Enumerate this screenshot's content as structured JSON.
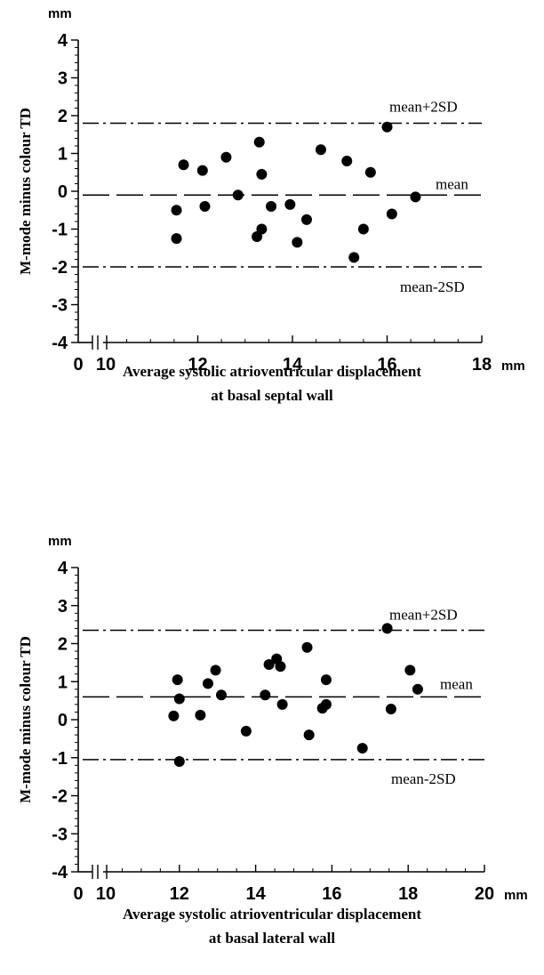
{
  "chart_data": [
    {
      "type": "scatter",
      "title": "",
      "ylabel": "M-mode minus colour TD",
      "y_unit": "mm",
      "x_unit": "mm",
      "xlabel_lines": [
        "Average systolic atrioventricular displacement",
        "at basal septal wall"
      ],
      "ylim": [
        -4,
        4
      ],
      "yticks": [
        4,
        3,
        2,
        1,
        0,
        -1,
        -2,
        -3,
        -4
      ],
      "ytick_labels": [
        "4",
        "3",
        "2",
        "1",
        "0",
        "-1",
        "-2",
        "-3",
        "-4"
      ],
      "xlim": [
        10,
        18
      ],
      "xticks": [
        12,
        14,
        16,
        18
      ],
      "xtick_labels": [
        "12",
        "14",
        "16",
        "18"
      ],
      "x_break_labels": [
        "0",
        "10"
      ],
      "grid": false,
      "reference_lines": [
        {
          "label": "mean+2SD",
          "value": 1.8,
          "style": "dash-dot"
        },
        {
          "label": "mean",
          "value": -0.1,
          "style": "dashed"
        },
        {
          "label": "mean-2SD",
          "value": -2.0,
          "style": "dash-dot"
        }
      ],
      "x": [
        11.55,
        11.55,
        11.7,
        12.1,
        12.15,
        12.6,
        12.85,
        13.25,
        13.3,
        13.35,
        13.35,
        13.55,
        13.95,
        14.1,
        14.3,
        14.6,
        15.15,
        15.3,
        15.5,
        15.65,
        16.0,
        16.1,
        16.6
      ],
      "y": [
        -0.5,
        -1.25,
        0.7,
        0.55,
        -0.4,
        0.9,
        -0.1,
        -1.2,
        1.3,
        0.45,
        -1.0,
        -0.4,
        -0.35,
        -1.35,
        -0.75,
        1.1,
        0.8,
        -1.75,
        -1.0,
        0.5,
        1.7,
        -0.6,
        -0.15
      ]
    },
    {
      "type": "scatter",
      "title": "",
      "ylabel": "M-mode minus colour TD",
      "y_unit": "mm",
      "x_unit": "mm",
      "xlabel_lines": [
        "Average systolic atrioventricular displacement",
        "at basal lateral wall"
      ],
      "ylim": [
        -4,
        4
      ],
      "yticks": [
        4,
        3,
        2,
        1,
        0,
        -1,
        -2,
        -3,
        -4
      ],
      "ytick_labels": [
        "4",
        "3",
        "2",
        "1",
        "0",
        "-1",
        "-2",
        "-3",
        "-4"
      ],
      "xlim": [
        10,
        20
      ],
      "xticks": [
        12,
        14,
        16,
        18,
        20
      ],
      "xtick_labels": [
        "12",
        "14",
        "16",
        "18",
        "20"
      ],
      "x_break_labels": [
        "0",
        "10"
      ],
      "grid": false,
      "reference_lines": [
        {
          "label": "mean+2SD",
          "value": 2.35,
          "style": "dash-dot"
        },
        {
          "label": "mean",
          "value": 0.6,
          "style": "dashed"
        },
        {
          "label": "mean-2SD",
          "value": -1.05,
          "style": "dash-dot"
        }
      ],
      "x": [
        11.85,
        11.95,
        12.0,
        12.0,
        12.55,
        12.75,
        12.95,
        13.1,
        13.75,
        14.25,
        14.35,
        14.55,
        14.65,
        14.7,
        15.35,
        15.4,
        15.75,
        15.85,
        15.85,
        16.8,
        17.45,
        17.55,
        18.05,
        18.25
      ],
      "y": [
        0.1,
        1.05,
        0.55,
        -1.1,
        0.12,
        0.95,
        1.3,
        0.65,
        -0.3,
        0.65,
        1.45,
        1.6,
        1.4,
        0.4,
        1.9,
        -0.4,
        0.3,
        1.05,
        0.4,
        -0.75,
        2.4,
        0.28,
        1.3,
        0.8
      ]
    }
  ]
}
